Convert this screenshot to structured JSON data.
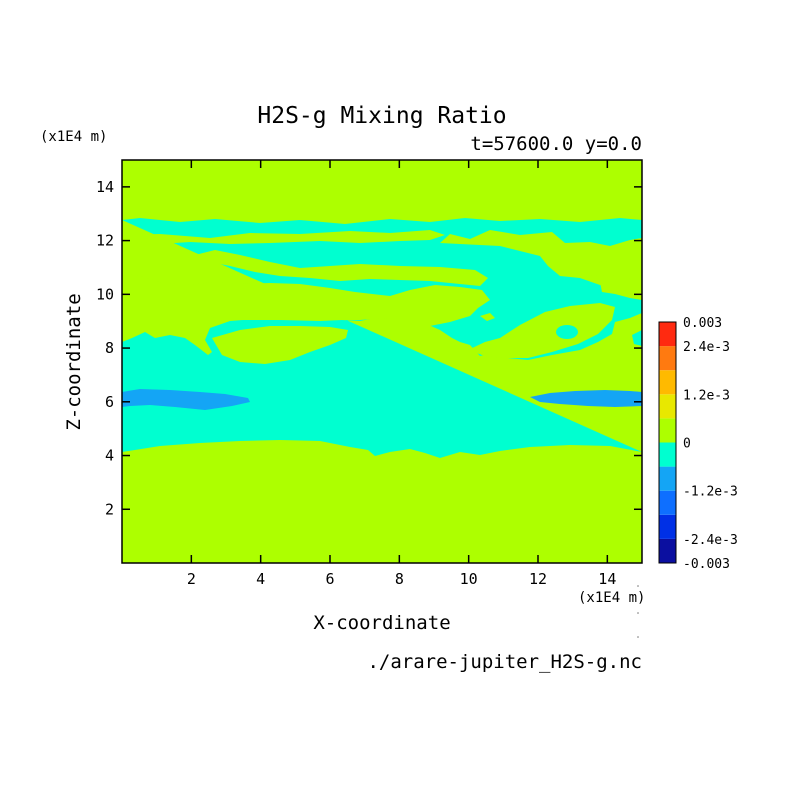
{
  "chart_data": {
    "type": "heatmap",
    "title": "H2S-g Mixing Ratio",
    "subtitle": "t=57600.0 y=0.0",
    "xlabel": "X-coordinate",
    "ylabel": "Z-coordinate",
    "x_unit": "(x1E4 m)",
    "y_unit": "(x1E4 m)",
    "footer": "./arare-jupiter_H2S-g.nc",
    "xlim": [
      0,
      15
    ],
    "ylim": [
      0,
      15
    ],
    "x_ticks": [
      2,
      4,
      6,
      8,
      10,
      12,
      14
    ],
    "y_ticks": [
      2,
      4,
      6,
      8,
      10,
      12,
      14
    ],
    "x_tick_labels": [
      "2",
      "4",
      "6",
      "8",
      "10",
      "12",
      "14"
    ],
    "y_tick_labels": [
      "2",
      "4",
      "6",
      "8",
      "10",
      "12",
      "14"
    ],
    "colorbar": {
      "range": [
        -0.003,
        0.003
      ],
      "levels": [
        {
          "lo": -0.003,
          "hi": -0.0024,
          "color": "#0b0fa0"
        },
        {
          "lo": -0.0024,
          "hi": -0.0018,
          "color": "#0030e6"
        },
        {
          "lo": -0.0018,
          "hi": -0.0012,
          "color": "#0e6fff"
        },
        {
          "lo": -0.0012,
          "hi": -0.0006,
          "color": "#14a5f5"
        },
        {
          "lo": -0.0006,
          "hi": 0.0,
          "color": "#00ffd0"
        },
        {
          "lo": 0.0,
          "hi": 0.0006,
          "color": "#adff00"
        },
        {
          "lo": 0.0006,
          "hi": 0.0012,
          "color": "#e8e800"
        },
        {
          "lo": 0.0012,
          "hi": 0.0018,
          "color": "#ffba00"
        },
        {
          "lo": 0.0018,
          "hi": 0.0024,
          "color": "#ff7a10"
        },
        {
          "lo": 0.0024,
          "hi": 0.003,
          "color": "#ff2a10"
        }
      ],
      "tick_labels": [
        {
          "value": 0.003,
          "text": "0.003"
        },
        {
          "value": 0.0024,
          "text": "2.4e-3"
        },
        {
          "value": 0.0012,
          "text": "1.2e-3"
        },
        {
          "value": 0.0,
          "text": "0"
        },
        {
          "value": -0.0012,
          "text": "-1.2e-3"
        },
        {
          "value": -0.0024,
          "text": "-2.4e-3"
        },
        {
          "value": -0.003,
          "text": "-0.003"
        }
      ]
    },
    "regions": {
      "background": {
        "level": "0 to 6e-4",
        "color": "#adff00"
      },
      "negative_band": {
        "level": "-6e-4 to 0",
        "color": "#00ffd0",
        "z_range": [
          4.0,
          12.8
        ]
      },
      "minimum_patches": {
        "level": "-1.2e-3 to -6e-4",
        "color": "#14a5f5",
        "z_range": [
          5.8,
          6.4
        ]
      }
    }
  }
}
